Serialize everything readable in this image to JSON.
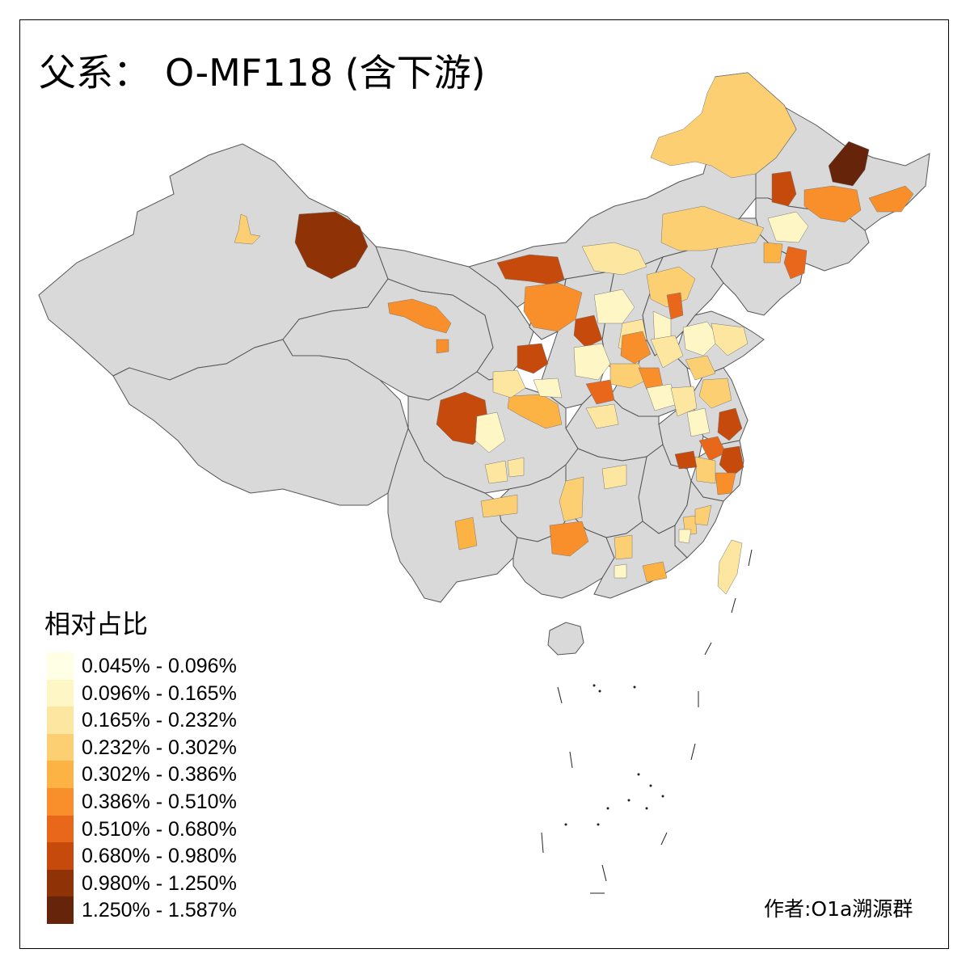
{
  "title": {
    "prefix": "父系：",
    "haplogroup": "O-MF118 (含下游)"
  },
  "legend": {
    "title": "相对占比",
    "items": [
      {
        "label": "0.045% - 0.096%",
        "color": "#ffffe6"
      },
      {
        "label": "0.096% - 0.165%",
        "color": "#fff6c6"
      },
      {
        "label": "0.165% - 0.232%",
        "color": "#fde6a0"
      },
      {
        "label": "0.232% - 0.302%",
        "color": "#fdcf73"
      },
      {
        "label": "0.302% - 0.386%",
        "color": "#fdb244"
      },
      {
        "label": "0.386% - 0.510%",
        "color": "#f88f2a"
      },
      {
        "label": "0.510% - 0.680%",
        "color": "#e8671a"
      },
      {
        "label": "0.680% - 0.980%",
        "color": "#c54a0b"
      },
      {
        "label": "0.980% - 1.250%",
        "color": "#8f3306"
      },
      {
        "label": "1.250% - 1.587%",
        "color": "#66250a"
      }
    ]
  },
  "credit": "作者:O1a溯源群",
  "map": {
    "background_region_color": "#d9d9d9",
    "border_color": "#555555"
  }
}
